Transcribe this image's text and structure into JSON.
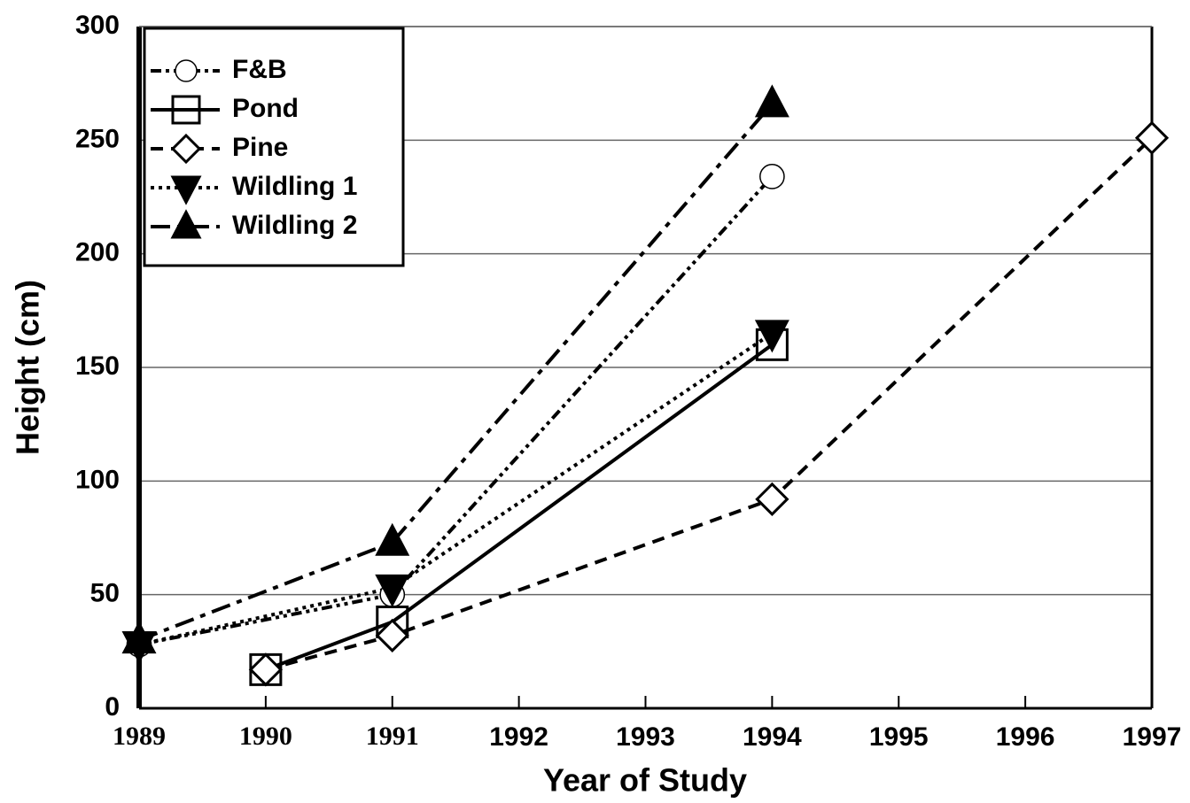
{
  "chart_data": {
    "type": "line",
    "ylabel": "Height (cm)",
    "xlabel": "Year of Study",
    "xlim": [
      1989,
      1997
    ],
    "xticks": [
      1989,
      1990,
      1991,
      1992,
      1993,
      1994,
      1995,
      1996,
      1997
    ],
    "ylim": [
      0,
      300
    ],
    "yticks": [
      0,
      50,
      100,
      150,
      200,
      250,
      300
    ],
    "grid": true,
    "legend": "upper left",
    "series": [
      {
        "name": "F&B",
        "color": "#000000",
        "marker": "circle",
        "line_style": "dash-dot-dot",
        "x": [
          1989,
          1991,
          1994
        ],
        "values": [
          28,
          50,
          234
        ]
      },
      {
        "name": "Pond",
        "color": "#000000",
        "marker": "square",
        "line_style": "solid",
        "x": [
          1990,
          1991,
          1994
        ],
        "values": [
          17,
          38,
          160
        ]
      },
      {
        "name": "Pine",
        "color": "#000000",
        "marker": "diamond",
        "line_style": "dashed",
        "x": [
          1990,
          1991,
          1994,
          1997
        ],
        "values": [
          17,
          32,
          92,
          251
        ]
      },
      {
        "name": "Wildling 1",
        "color": "#000000",
        "marker": "triangle-down",
        "line_style": "dotted",
        "x": [
          1989,
          1991,
          1994
        ],
        "values": [
          28,
          53,
          165
        ]
      },
      {
        "name": "Wildling 2",
        "color": "#000000",
        "marker": "triangle",
        "line_style": "dash-dot",
        "x": [
          1989,
          1991,
          1994
        ],
        "values": [
          30,
          73,
          266
        ]
      }
    ]
  }
}
